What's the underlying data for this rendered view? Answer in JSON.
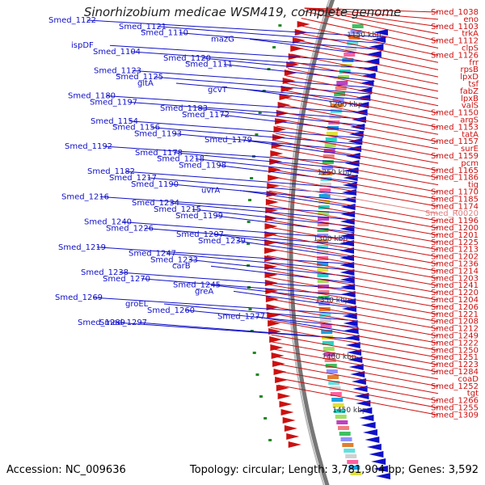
{
  "title": "Sinorhizobium medicae WSM419, complete genome",
  "accession": "Accession: NC_009636",
  "topology": "Topology: circular; Length: 3,781,904 bp; Genes: 3,592",
  "colors": {
    "left_genes": "#1010c8",
    "right_genes": "#cc1010",
    "rna": "#e08080",
    "backbone": "#888888",
    "ticks": "#228822"
  },
  "ticks": [
    "1150 kbp",
    "1200 kbp",
    "1250 kbp",
    "1300 kbp",
    "1350 kbp",
    "1400 kbp",
    "1450 kbp"
  ],
  "left_labels": [
    "Smed_1122",
    "Smed_1121",
    "Smed_1110",
    "mazG",
    "ispDF",
    "Smed_1104",
    "Smed_1120",
    "Smed_1111",
    "Smed_1123",
    "Smed_1125",
    "gltA",
    "gcvT",
    "Smed_1180",
    "Smed_1197",
    "Smed_1183",
    "Smed_1172",
    "Smed_1154",
    "Smed_1156",
    "Smed_1193",
    "Smed_1179",
    "Smed_1192",
    "Smed_1178",
    "Smed_1218",
    "Smed_1198",
    "Smed_1182",
    "Smed_1217",
    "Smed_1190",
    "uvrA",
    "Smed_1216",
    "Smed_1234",
    "Smed_1215",
    "Smed_1199",
    "Smed_1240",
    "Smed_1226",
    "Smed_1207",
    "Smed_1239",
    "Smed_1219",
    "Smed_1247",
    "Smed_1233",
    "carB",
    "Smed_1238",
    "Smed_1270",
    "Smed_1245",
    "greA",
    "Smed_1269",
    "groEL",
    "Smed_1260",
    "Smed_1277",
    "Smed_1289",
    "Smed_1297"
  ],
  "right_labels": [
    "Smed_1038",
    "eno",
    "Smed_1103",
    "trkA",
    "Smed_1112",
    "clpS",
    "Smed_1126",
    "frr",
    "rpsB",
    "lpxD",
    "tsf",
    "fabZ",
    "lpxB",
    "valS",
    "Smed_1150",
    "argS",
    "Smed_1153",
    "tatA",
    "Smed_1157",
    "surE",
    "Smed_1159",
    "pcm",
    "Smed_1165",
    "Smed_1186",
    "tig",
    "Smed_1170",
    "Smed_1185",
    "Smed_1174",
    "Smed_R0020",
    "Smed_1196",
    "Smed_1200",
    "Smed_1201",
    "Smed_1225",
    "Smed_1213",
    "Smed_1202",
    "Smed_1236",
    "Smed_1214",
    "Smed_1203",
    "Smed_1241",
    "Smed_1220",
    "Smed_1204",
    "Smed_1206",
    "Smed_1221",
    "Smed_1208",
    "Smed_1212",
    "Smed_1249",
    "Smed_1222",
    "Smed_1250",
    "Smed_1251",
    "Smed_1223",
    "Smed_1284",
    "coaD",
    "Smed_1252",
    "tgt",
    "Smed_1266",
    "Smed_1255",
    "Smed_1309"
  ]
}
